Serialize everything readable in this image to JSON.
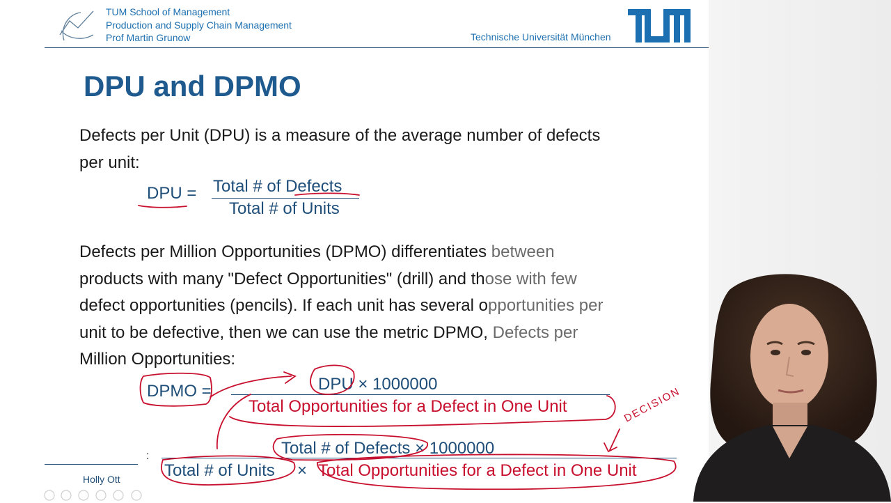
{
  "header": {
    "org_lines": [
      "TUM School of Management",
      "Production and Supply Chain Management",
      "Prof Martin Grunow"
    ],
    "university": "Technische Universität München"
  },
  "slide": {
    "title": "DPU and DPMO",
    "paragraph1": {
      "line1": "Defects per Unit (DPU) is a measure of the average number of defects",
      "line2": "per unit:"
    },
    "dpu_formula": {
      "lhs": "DPU =",
      "numerator": "Total # of Defects",
      "denominator": "Total # of Units"
    },
    "paragraph2": {
      "line1a": "Defects per Million Opportunities (DPMO) differentiates ",
      "line1b": "between",
      "line2a": "products with many \"Defect Opportunities\" (drill) and th",
      "line2b": "ose with few",
      "line3a": "defect opportunities (pencils). If each unit has several o",
      "line3b": "pportunities per",
      "line4a": "unit to be defective, then we can use the metric DPMO, ",
      "line4b": "Defects per",
      "line5": "Million Opportunities:"
    },
    "dpmo_formula": {
      "lhs": "DPMO =",
      "numerator": "DPU × 1000000",
      "denominator": "Total Opportunities for a Defect in One Unit",
      "colon": ":",
      "numerator2": "Total # of Defects × 1000000",
      "denominator2_a": "Total # of Units",
      "times": "×",
      "denominator2_b": "Total Opportunities for a Defect in One Unit"
    },
    "annotation": "DECISION"
  },
  "footer": {
    "presenter": "Holly Ott"
  },
  "colors": {
    "brand_blue": "#1c6fb0",
    "title_blue": "#1f5a8f",
    "ink_red": "#c8102e"
  }
}
